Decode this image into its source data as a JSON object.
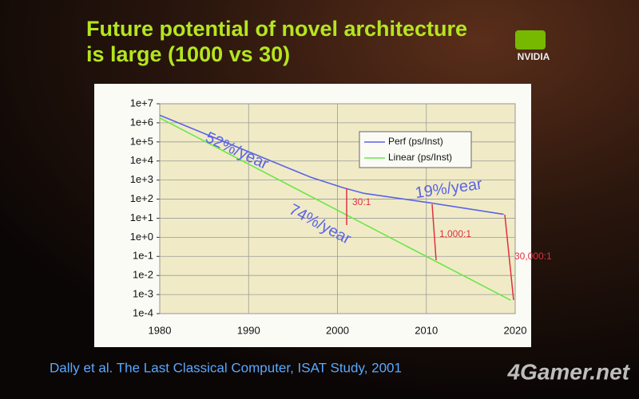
{
  "chart_data": {
    "type": "line",
    "title": [
      "Future potential of novel architecture",
      "is large (1000 vs 30)"
    ],
    "logo": "NVIDIA",
    "citation": "Dally et al. The Last Classical Computer, ISAT Study, 2001",
    "watermark": "4Gamer.net",
    "log_scale_y": true,
    "grid": true,
    "legend_position": "upper right",
    "xlim": [
      1980,
      2020
    ],
    "xticks": [
      1980,
      1990,
      2000,
      2010,
      2020
    ],
    "ylim": [
      0.0001,
      10000000
    ],
    "yticks": [
      {
        "value": 0.0001,
        "label": "1e-4"
      },
      {
        "value": 0.001,
        "label": "1e-3"
      },
      {
        "value": 0.01,
        "label": "1e-2"
      },
      {
        "value": 0.1,
        "label": "1e-1"
      },
      {
        "value": 1,
        "label": "1e+0"
      },
      {
        "value": 10,
        "label": "1e+1"
      },
      {
        "value": 100,
        "label": "1e+2"
      },
      {
        "value": 1000,
        "label": "1e+3"
      },
      {
        "value": 10000,
        "label": "1e+4"
      },
      {
        "value": 100000,
        "label": "1e+5"
      },
      {
        "value": 1000000,
        "label": "1e+6"
      },
      {
        "value": 10000000,
        "label": "1e+7"
      }
    ],
    "series": [
      {
        "name": "Perf (ps/Inst)",
        "color": "#5a63e6",
        "x": [
          1980,
          1997,
          2000.6,
          2003,
          2010.5,
          2018.7
        ],
        "values": [
          2500000,
          1400,
          400,
          200,
          63,
          16
        ]
      },
      {
        "name": "Linear (ps/Inst)",
        "color": "#6be64a",
        "x": [
          1980,
          2019.5
        ],
        "values": [
          1800000,
          0.0005
        ]
      }
    ],
    "annotations": [
      "52%/year",
      "74%/year",
      "19%/year",
      "30:1",
      "1,000:1",
      "30,000:1"
    ]
  }
}
